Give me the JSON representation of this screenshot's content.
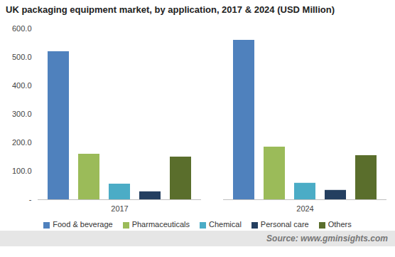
{
  "chart_data": {
    "type": "bar",
    "title": "UK packaging equipment market, by application, 2017 & 2024 (USD Million)",
    "categories": [
      "2017",
      "2024"
    ],
    "series": [
      {
        "name": "Food & beverage",
        "color": "#4f81bd",
        "values": [
          520,
          560
        ]
      },
      {
        "name": "Pharmaceuticals",
        "color": "#9bbb59",
        "values": [
          160,
          185
        ]
      },
      {
        "name": "Chemical",
        "color": "#4bacc6",
        "values": [
          55,
          58
        ]
      },
      {
        "name": "Personal care",
        "color": "#243f60",
        "values": [
          28,
          33
        ]
      },
      {
        "name": "Others",
        "color": "#5a6e2c",
        "values": [
          150,
          155
        ]
      }
    ],
    "ylim": [
      0,
      600
    ],
    "yticks": [
      {
        "value": 0,
        "label": "-"
      },
      {
        "value": 100,
        "label": "100.0"
      },
      {
        "value": 200,
        "label": "200.0"
      },
      {
        "value": 300,
        "label": "300.0"
      },
      {
        "value": 400,
        "label": "400.0"
      },
      {
        "value": 500,
        "label": "500.0"
      },
      {
        "value": 600,
        "label": "600.0"
      }
    ],
    "grid": false,
    "legend": "bottom",
    "source": "Source: www.gminsights.com"
  }
}
